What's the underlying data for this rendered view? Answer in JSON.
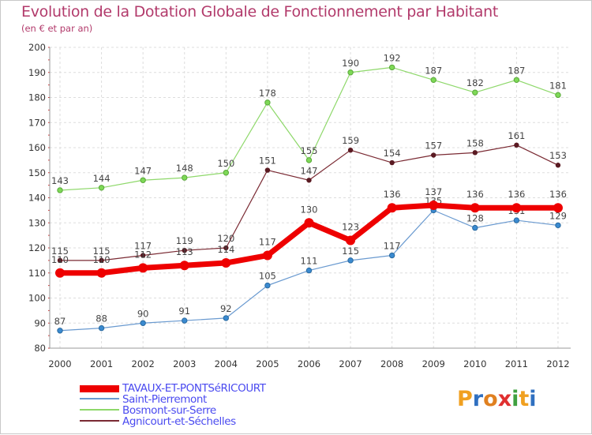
{
  "chart_data": {
    "type": "line",
    "title": "Evolution de la Dotation Globale de Fonctionnement par Habitant",
    "subtitle": "(en € et par an)",
    "xlabel": "",
    "ylabel": "",
    "ylim": [
      80,
      200
    ],
    "yticks": [
      80,
      90,
      100,
      110,
      120,
      130,
      140,
      150,
      160,
      170,
      180,
      190,
      200
    ],
    "grid": true,
    "legend_position": "bottom-left",
    "categories": [
      "2000",
      "2001",
      "2002",
      "2003",
      "2004",
      "2005",
      "2006",
      "2007",
      "2008",
      "2009",
      "2010",
      "2011",
      "2012"
    ],
    "series": [
      {
        "name": "TAVAUX-ET-PONTSéRICOURT",
        "color": "#ee0000",
        "values": [
          110,
          110,
          112,
          113,
          114,
          117,
          130,
          123,
          136,
          137,
          136,
          136,
          136
        ]
      },
      {
        "name": "Saint-Pierremont",
        "color": "#6a9ad0",
        "values": [
          87,
          88,
          90,
          91,
          92,
          105,
          111,
          115,
          117,
          135,
          128,
          131,
          129
        ]
      },
      {
        "name": "Bosmont-sur-Serre",
        "color": "#8ed86a",
        "values": [
          143,
          144,
          147,
          148,
          150,
          178,
          155,
          190,
          192,
          187,
          182,
          187,
          181
        ]
      },
      {
        "name": "Agnicourt-et-Séchelles",
        "color": "#7a2a33",
        "values": [
          115,
          115,
          117,
          119,
          120,
          151,
          147,
          159,
          154,
          157,
          158,
          161,
          153
        ]
      }
    ]
  },
  "logo": {
    "text": "Proxiti",
    "colors": [
      "#f0a020",
      "#3070c0",
      "#e08020",
      "#e03030",
      "#40a040",
      "#f0a020",
      "#3070c0"
    ]
  }
}
